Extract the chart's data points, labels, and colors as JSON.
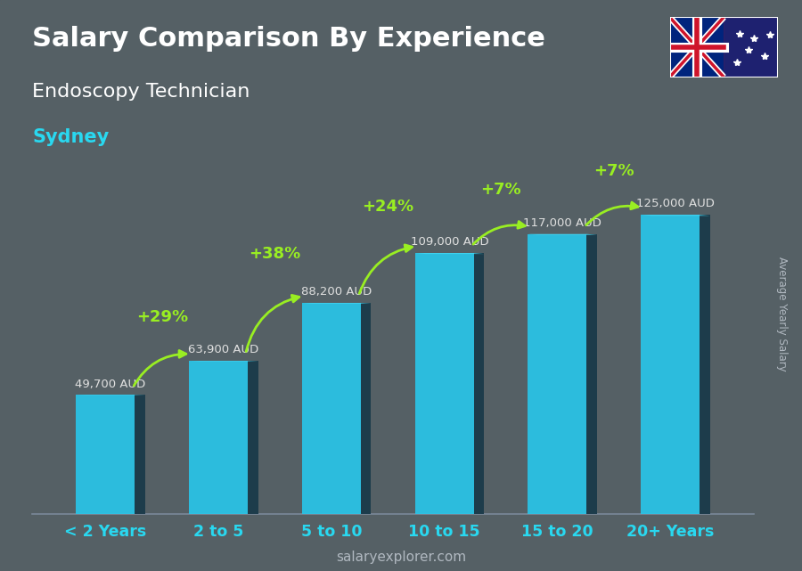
{
  "title_line1": "Salary Comparison By Experience",
  "title_line2": "Endoscopy Technician",
  "city": "Sydney",
  "categories": [
    "< 2 Years",
    "2 to 5",
    "5 to 10",
    "10 to 15",
    "15 to 20",
    "20+ Years"
  ],
  "values": [
    49700,
    63900,
    88200,
    109000,
    117000,
    125000
  ],
  "labels": [
    "49,700 AUD",
    "63,900 AUD",
    "88,200 AUD",
    "109,000 AUD",
    "117,000 AUD",
    "125,000 AUD"
  ],
  "pct_labels": [
    "+29%",
    "+38%",
    "+24%",
    "+7%",
    "+7%"
  ],
  "bar_color_main": "#29c5e8",
  "bar_color_dark_side": "#1a3a4a",
  "bar_color_top": "#45d8f5",
  "bg_overlay": "#2a3a4a",
  "title_color": "#ffffff",
  "subtitle_color": "#ffffff",
  "city_color": "#29d8f0",
  "label_color": "#e0e0e0",
  "pct_color": "#99ee22",
  "axis_label_color": "#29d8f0",
  "ylabel_text": "Average Yearly Salary",
  "watermark": "salaryexplorer.com",
  "ylim": [
    0,
    148000
  ],
  "bar_width": 0.52,
  "side_depth": 0.09
}
